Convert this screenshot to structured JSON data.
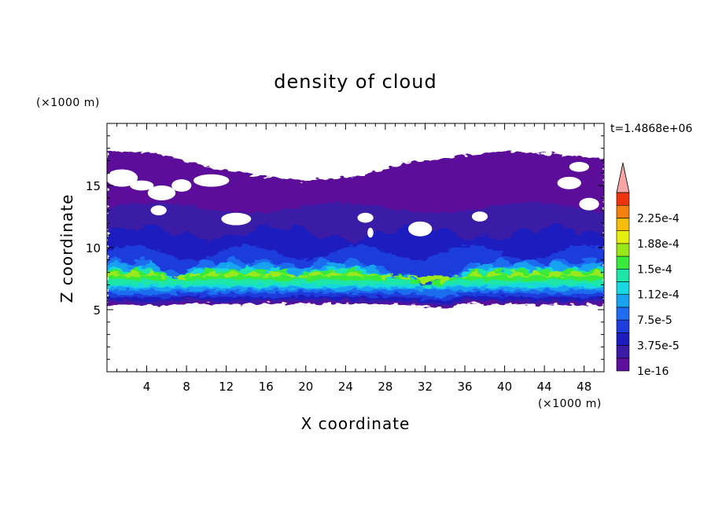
{
  "chart_data": {
    "type": "heatmap",
    "title": "density of cloud",
    "xlabel": "X coordinate",
    "ylabel": "Z coordinate",
    "x_unit": "(×1000 m)",
    "y_unit": "(×1000 m)",
    "time_label": "t=1.4868e+06",
    "xlim": [
      0,
      50
    ],
    "ylim": [
      0,
      20
    ],
    "x_ticks": [
      4,
      8,
      12,
      16,
      20,
      24,
      28,
      32,
      36,
      40,
      44,
      48
    ],
    "y_ticks": [
      5,
      10,
      15
    ],
    "colorbar": {
      "levels": [
        "1e-16",
        "",
        "3.75e-5",
        "",
        "7.5e-5",
        "",
        "1.12e-4",
        "",
        "1.5e-4",
        "",
        "1.88e-4",
        "",
        "2.25e-4",
        ""
      ],
      "colors": [
        "#5b0f9a",
        "#3a1aa6",
        "#1d1dbf",
        "#1e3ddc",
        "#1f6cf0",
        "#19a2f0",
        "#17d7e0",
        "#1fe6a8",
        "#39ea3a",
        "#9be81a",
        "#e6ef12",
        "#f6be0c",
        "#f6800f",
        "#ef3410"
      ],
      "extend_color": "#f7a5a5"
    },
    "bands": [
      {
        "name": "top-edge",
        "z": [
          [
            0,
            17.8
          ],
          [
            5,
            17.6
          ],
          [
            10,
            16.5
          ],
          [
            15,
            15.8
          ],
          [
            20,
            15.4
          ],
          [
            25,
            15.7
          ],
          [
            30,
            16.8
          ],
          [
            35,
            17.3
          ],
          [
            40,
            17.8
          ],
          [
            45,
            17.5
          ],
          [
            50,
            17.1
          ]
        ]
      },
      {
        "name": "bottom-edge",
        "z": [
          [
            0,
            5.4
          ],
          [
            6,
            5.3
          ],
          [
            8,
            5.5
          ],
          [
            12,
            5.4
          ],
          [
            20,
            5.5
          ],
          [
            30,
            5.4
          ],
          [
            34,
            5.1
          ],
          [
            36,
            5.5
          ],
          [
            44,
            5.4
          ],
          [
            50,
            5.4
          ]
        ]
      }
    ]
  }
}
